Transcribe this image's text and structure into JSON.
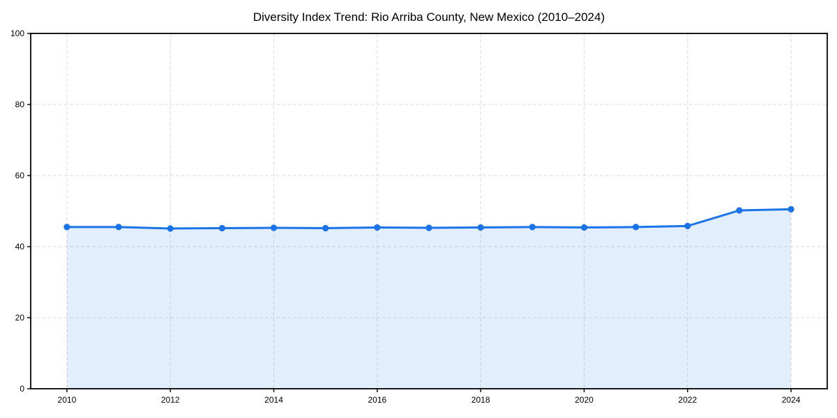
{
  "chart_data": {
    "type": "area",
    "title": "Diversity Index Trend: Rio Arriba County, New Mexico (2010–2024)",
    "xlabel": "",
    "ylabel": "",
    "x": [
      2010,
      2011,
      2012,
      2013,
      2014,
      2015,
      2016,
      2017,
      2018,
      2019,
      2020,
      2021,
      2022,
      2023,
      2024
    ],
    "values": [
      45.5,
      45.5,
      45.1,
      45.2,
      45.3,
      45.2,
      45.4,
      45.3,
      45.4,
      45.5,
      45.4,
      45.5,
      45.8,
      50.2,
      50.5
    ],
    "xlim": [
      2009.3,
      2024.7
    ],
    "ylim": [
      0,
      100
    ],
    "xticks": [
      2010,
      2012,
      2014,
      2016,
      2018,
      2020,
      2022,
      2024
    ],
    "yticks": [
      0,
      20,
      40,
      60,
      80,
      100
    ],
    "grid": true,
    "grid_style": "dashed",
    "legend": "none",
    "colors": {
      "line": "#1a73e8",
      "marker": "#1a73e8",
      "fill": "#1a73e8",
      "fill_opacity": 0.12,
      "grid": "#dcdcdc",
      "spine": "#000000",
      "text": "#000000",
      "background": "#ffffff"
    }
  }
}
